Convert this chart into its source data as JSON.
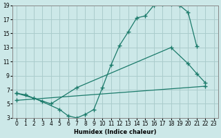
{
  "xlabel": "Humidex (Indice chaleur)",
  "background_color": "#cce8e8",
  "grid_color": "#aacccc",
  "line_color": "#1a7a6a",
  "xlim": [
    -0.5,
    23.5
  ],
  "ylim": [
    3,
    19
  ],
  "xticks": [
    0,
    1,
    2,
    3,
    4,
    5,
    6,
    7,
    8,
    9,
    10,
    11,
    12,
    13,
    14,
    15,
    16,
    17,
    18,
    19,
    20,
    21,
    22,
    23
  ],
  "yticks": [
    3,
    5,
    7,
    9,
    11,
    13,
    15,
    17,
    19
  ],
  "series1_x": [
    0,
    1,
    3,
    5,
    6,
    7,
    8,
    9,
    10,
    11,
    12,
    13,
    14,
    15,
    16,
    17,
    18,
    19,
    20,
    21
  ],
  "series1_y": [
    6.5,
    6.3,
    5.3,
    4.2,
    3.3,
    3.0,
    3.5,
    4.2,
    7.3,
    10.5,
    13.3,
    15.2,
    17.2,
    17.5,
    19.0,
    19.2,
    19.2,
    19.0,
    18.0,
    13.2
  ],
  "series2_x": [
    0,
    2,
    4,
    7,
    18,
    20,
    21,
    22
  ],
  "series2_y": [
    6.5,
    5.8,
    5.0,
    7.3,
    13.0,
    10.7,
    9.3,
    8.0
  ],
  "series3_x": [
    0,
    22
  ],
  "series3_y": [
    5.5,
    7.5
  ]
}
